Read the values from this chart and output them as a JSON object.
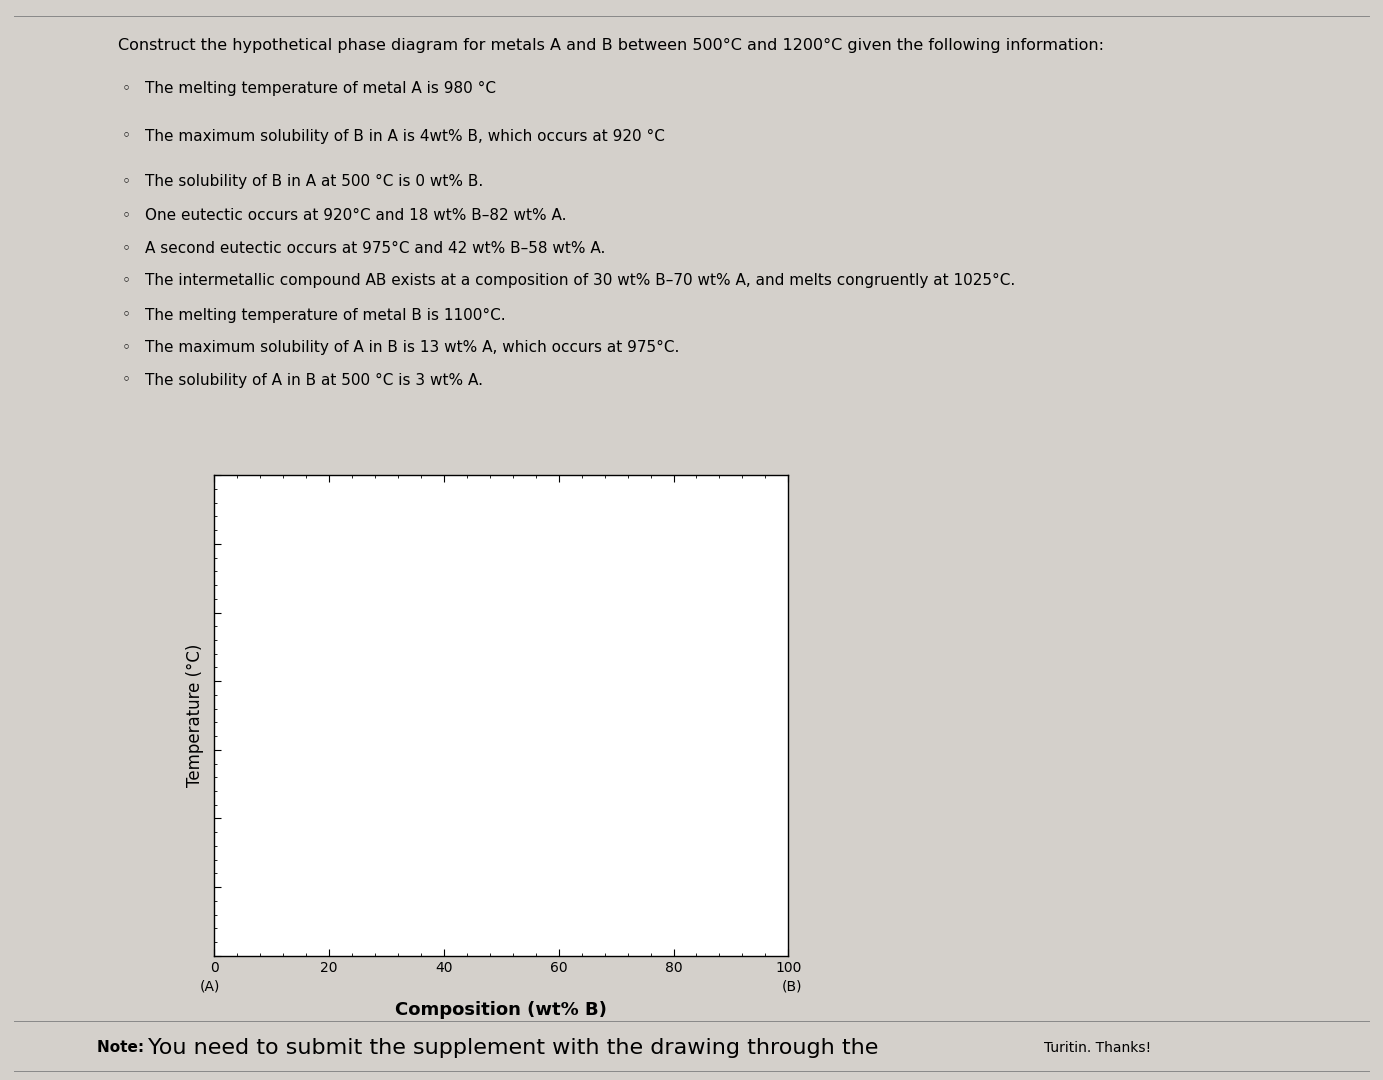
{
  "title": "Construct the hypothetical phase diagram for metals A and B between 500°C and 1200°C given the following information:",
  "bullet_points": [
    "The melting temperature of metal A is 980 °C",
    "The maximum solubility of B in A is 4wt% B, which occurs at 920 °C",
    "The solubility of B in A at 500 °C is 0 wt% B.",
    "One eutectic occurs at 920°C and 18 wt% B–82 wt% A.",
    "A second eutectic occurs at 975°C and 42 wt% B–58 wt% A.",
    "The intermetallic compound AB exists at a composition of 30 wt% B–70 wt% A, and melts congruently at 1025°C.",
    "The melting temperature of metal B is 1100°C.",
    "The maximum solubility of A in B is 13 wt% A, which occurs at 975°C.",
    "The solubility of A in B at 500 °C is 3 wt% A."
  ],
  "xlabel": "Composition (wt% B)",
  "ylabel": "Temperature (°C)",
  "x_ticks": [
    0,
    20,
    40,
    60,
    80,
    100
  ],
  "xlim": [
    0,
    100
  ],
  "ylim": [
    500,
    1200
  ],
  "note_bold": "Note: ",
  "note_large": "You need to submit the supplement with the drawing through the ",
  "note_small": "Turitin. Thanks!",
  "background_color": "#d4d0cb",
  "box_bg_color": "#ffffff",
  "title_fontsize": 11.5,
  "bullet_fontsize": 11,
  "axis_label_fontsize": 12,
  "tick_fontsize": 10,
  "note_bold_fontsize": 11,
  "note_large_fontsize": 16,
  "note_small_fontsize": 10
}
